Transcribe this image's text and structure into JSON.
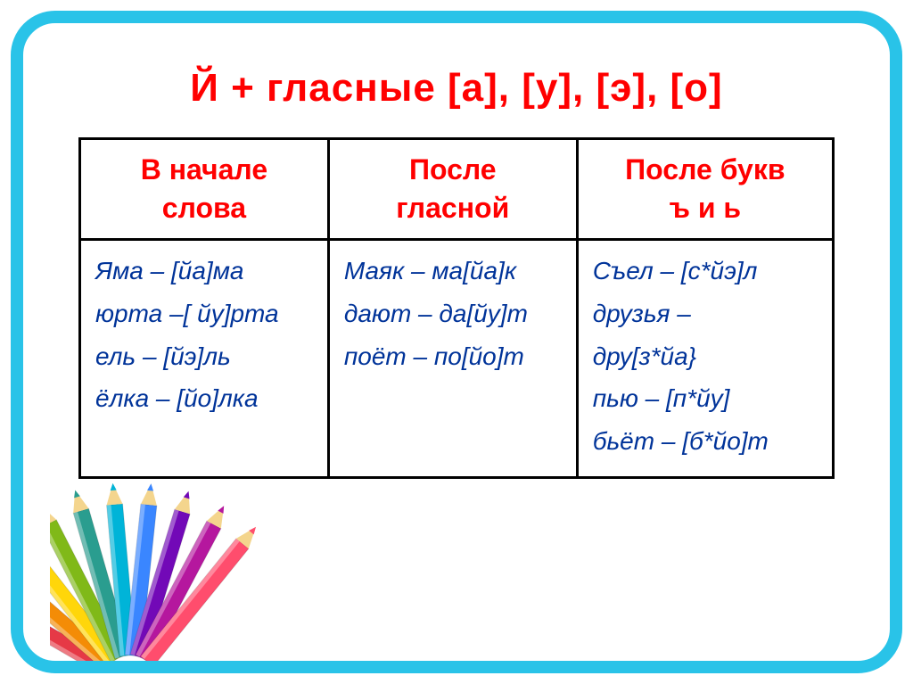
{
  "title": "Й + гласные [а], [у], [э], [о]",
  "headers": {
    "col1_l1": "В начале",
    "col1_l2": "слова",
    "col2_l1": "После",
    "col2_l2": "гласной",
    "col3_l1": "После букв",
    "col3_l2": "ъ и ь"
  },
  "col1": {
    "r1": "Яма – [йа]ма",
    "r2": "юрта –[ йу]рта",
    "r3": "ель – [йэ]ль",
    "r4": "ёлка – [йо]лка"
  },
  "col2": {
    "r1": "Маяк – ма[йа]к",
    "r2": "дают – да[йу]т",
    "r3": "поёт – по[йо]т"
  },
  "col3": {
    "r1": "Съел – [с*йэ]л",
    "r2": "друзья –",
    "r3": "дру[з*йа}",
    "r4": "пью – [п*йу]",
    "r5": "бьёт – [б*йо]т"
  },
  "frame_color": "#29c3e8",
  "title_color": "#ff0000",
  "header_color": "#ff0000",
  "cell_color": "#003399",
  "pencils": [
    {
      "body": "#e63946",
      "tip": "#f4d58d"
    },
    {
      "body": "#f48c06",
      "tip": "#f4d58d"
    },
    {
      "body": "#ffd60a",
      "tip": "#f4d58d"
    },
    {
      "body": "#80b918",
      "tip": "#f4d58d"
    },
    {
      "body": "#2a9d8f",
      "tip": "#f4d58d"
    },
    {
      "body": "#00b4d8",
      "tip": "#f4d58d"
    },
    {
      "body": "#3a86ff",
      "tip": "#f4d58d"
    },
    {
      "body": "#7209b7",
      "tip": "#f4d58d"
    },
    {
      "body": "#b5179e",
      "tip": "#f4d58d"
    },
    {
      "body": "#ff4d6d",
      "tip": "#f4d58d"
    }
  ]
}
